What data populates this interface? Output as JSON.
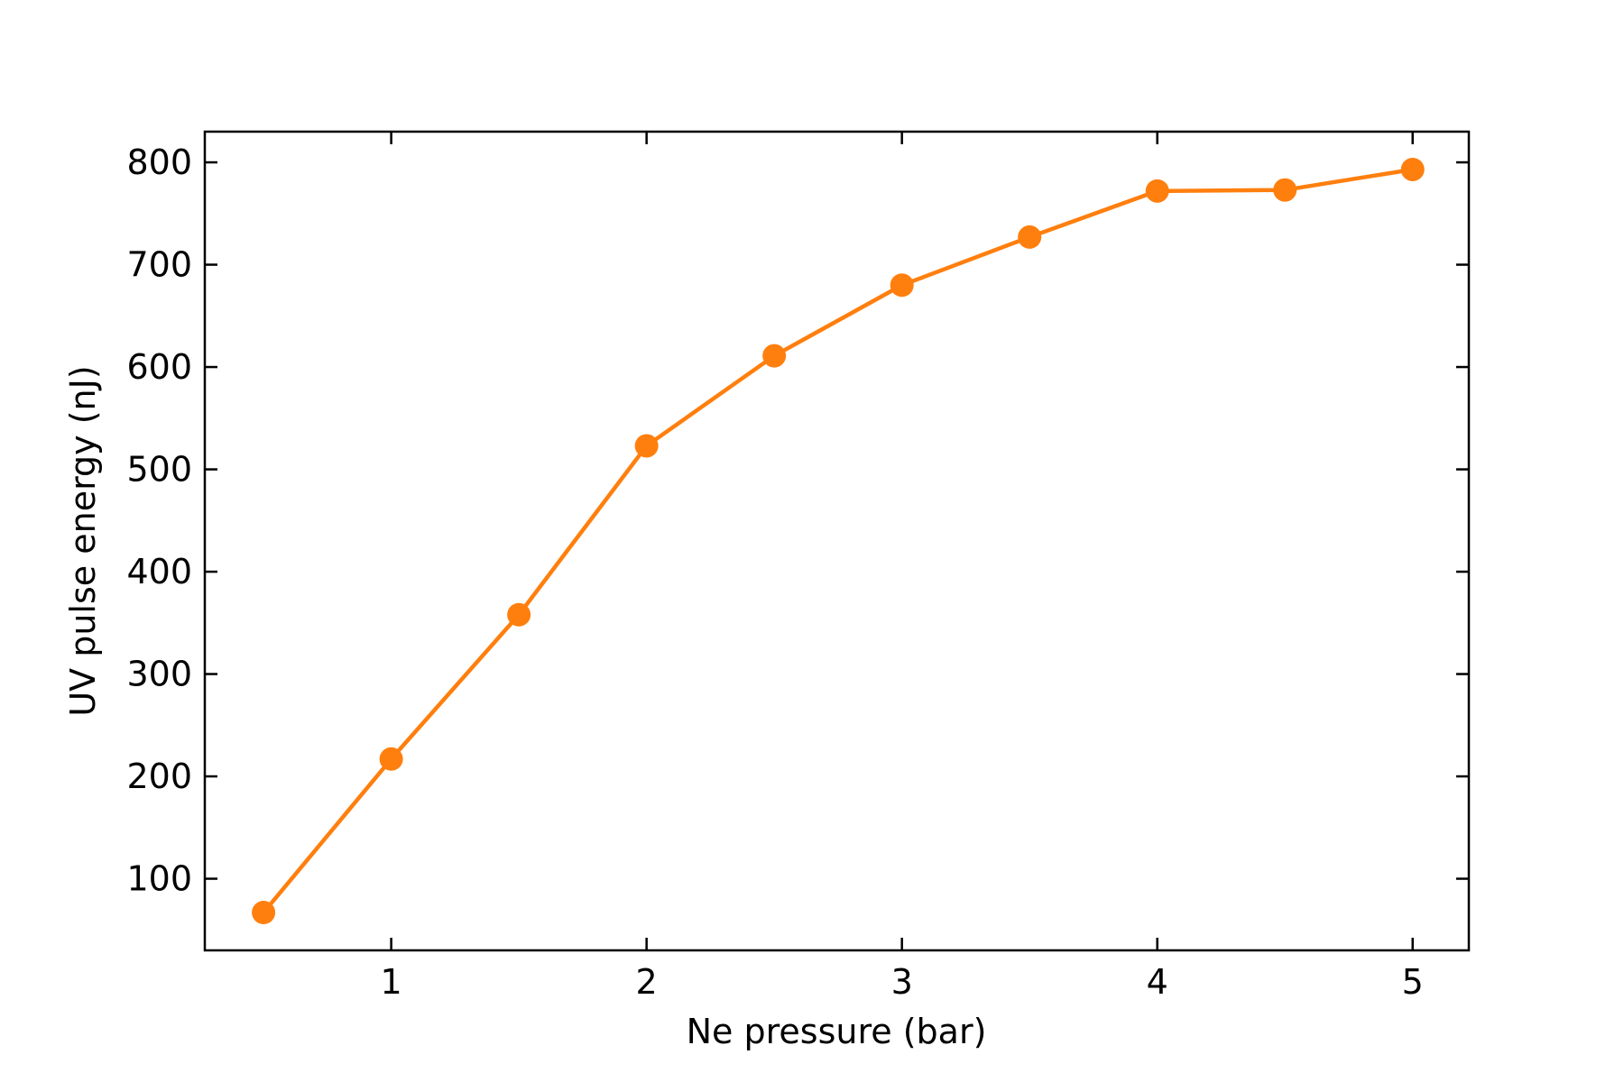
{
  "chart_data": {
    "type": "line",
    "title": "",
    "xlabel": "Ne pressure (bar)",
    "ylabel": "UV pulse energy (nJ)",
    "xlim": [
      0.27,
      5.22
    ],
    "ylim": [
      30,
      830
    ],
    "xticks": [
      1,
      2,
      3,
      4,
      5
    ],
    "yticks": [
      100,
      200,
      300,
      400,
      500,
      600,
      700,
      800
    ],
    "grid": false,
    "legend": "none",
    "series": [
      {
        "color": "#ff7f0e",
        "x": [
          0.5,
          1.0,
          1.5,
          2.0,
          2.5,
          3.0,
          3.5,
          4.0,
          4.5,
          5.0
        ],
        "y": [
          67,
          217,
          358,
          523,
          611,
          680,
          727,
          772,
          773,
          793
        ]
      }
    ]
  }
}
